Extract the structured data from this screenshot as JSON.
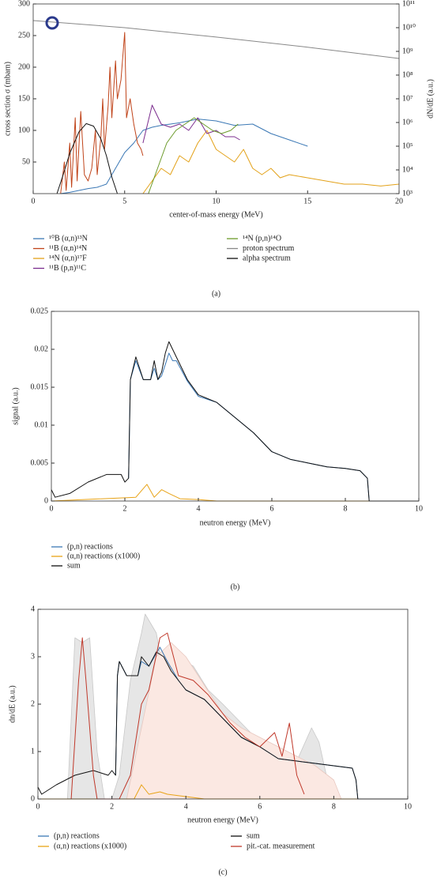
{
  "chart_data": [
    {
      "type": "line",
      "panel_label": "(a)",
      "x_label": "center-of-mass energy (MeV)",
      "y_label": "cross section σ (mbarn)",
      "y2_label": "dN/dE (a.u.)",
      "xlim": [
        0,
        20
      ],
      "xticks": [
        0,
        5,
        10,
        15,
        20
      ],
      "ylim": [
        0,
        300
      ],
      "yticks": [
        50,
        100,
        150,
        200,
        250,
        300
      ],
      "y2lim": [
        1000,
        100000000000
      ],
      "y2log": true,
      "y2ticks": [
        {
          "value": 1000,
          "label": "10³"
        },
        {
          "value": 10000,
          "label": "10⁴"
        },
        {
          "value": 100000,
          "label": "10⁵"
        },
        {
          "value": 1000000,
          "label": "10⁶"
        },
        {
          "value": 10000000,
          "label": "10⁷"
        },
        {
          "value": 100000000,
          "label": "10⁸"
        },
        {
          "value": 1000000000,
          "label": "10⁹"
        },
        {
          "value": 10000000000,
          "label": "10¹⁰"
        },
        {
          "value": 100000000000,
          "label": "10¹¹"
        }
      ],
      "series": [
        {
          "name": "¹⁰B (α,n)¹³N",
          "color": "#3b78b5",
          "x": [
            1.5,
            2,
            2.5,
            3,
            3.5,
            4,
            4.5,
            5,
            5.5,
            6,
            6.5,
            7,
            8,
            9,
            10,
            11,
            12,
            13,
            14,
            15
          ],
          "values": [
            0,
            2,
            5,
            8,
            10,
            15,
            40,
            65,
            80,
            100,
            105,
            108,
            112,
            118,
            115,
            108,
            110,
            95,
            85,
            75
          ]
        },
        {
          "name": "¹¹B (α,n)¹⁴N",
          "color": "#c0441a",
          "x": [
            1.5,
            1.7,
            1.8,
            2.0,
            2.1,
            2.3,
            2.4,
            2.6,
            2.8,
            3.0,
            3.2,
            3.4,
            3.5,
            3.7,
            3.8,
            3.9,
            4.1,
            4.2,
            4.3,
            4.5,
            4.6,
            4.8,
            5.0,
            5.1,
            5.3,
            5.5,
            5.7,
            5.9,
            6.0
          ],
          "values": [
            0,
            50,
            5,
            80,
            10,
            120,
            20,
            130,
            30,
            20,
            40,
            100,
            30,
            90,
            150,
            70,
            140,
            200,
            120,
            210,
            150,
            180,
            255,
            120,
            150,
            110,
            80,
            70,
            60
          ]
        },
        {
          "name": "¹⁴N (α,n)¹⁷F",
          "color": "#e3a21a",
          "x": [
            6,
            6.5,
            7,
            7.5,
            8,
            8.5,
            9,
            9.5,
            10,
            10.5,
            11,
            11.5,
            12,
            12.5,
            13,
            13.5,
            14,
            15,
            16,
            17,
            18,
            19,
            20
          ],
          "values": [
            0,
            20,
            40,
            30,
            60,
            50,
            80,
            100,
            70,
            60,
            50,
            70,
            40,
            30,
            40,
            25,
            30,
            25,
            20,
            15,
            15,
            12,
            15
          ]
        },
        {
          "name": "¹¹B (p,n)¹¹C",
          "color": "#7b2d8e",
          "x": [
            6,
            6.5,
            7,
            7.5,
            8,
            8.5,
            9,
            9.5,
            10,
            10.5,
            11,
            11.3
          ],
          "values": [
            80,
            140,
            110,
            105,
            110,
            100,
            120,
            95,
            100,
            90,
            90,
            85
          ]
        },
        {
          "name": "¹⁴N (p,n)¹⁴O",
          "color": "#6b9a2a",
          "x": [
            6.3,
            6.8,
            7.3,
            7.8,
            8.3,
            8.8,
            9.3,
            9.8,
            10.3,
            10.8,
            11.2
          ],
          "values": [
            0,
            40,
            80,
            100,
            110,
            120,
            110,
            100,
            95,
            100,
            110
          ]
        },
        {
          "name": "proton spectrum",
          "color": "#888888",
          "axis": "y2",
          "x": [
            0,
            5,
            10,
            15,
            20
          ],
          "values": [
            20000000000,
            10000000000,
            4000000000,
            1500000000,
            500000000
          ]
        },
        {
          "name": "alpha spectrum",
          "color": "#111111",
          "axis": "y2",
          "x": [
            1.3,
            1.6,
            2,
            2.5,
            2.9,
            3.3,
            3.7,
            4,
            4.3,
            4.6
          ],
          "values": [
            1000,
            5000,
            50000,
            400000,
            900000,
            700000,
            200000,
            40000,
            5000,
            1000
          ]
        }
      ]
    },
    {
      "type": "line",
      "panel_label": "(b)",
      "x_label": "neutron energy (MeV)",
      "y_label": "signal (a.u.)",
      "xlim": [
        0,
        10
      ],
      "xticks": [
        0,
        2,
        4,
        6,
        8,
        10
      ],
      "ylim": [
        0,
        0.025
      ],
      "yticks": [
        0,
        0.005,
        0.01,
        0.015,
        0.02,
        0.025
      ],
      "series": [
        {
          "name": "(p,n) reactions",
          "color": "#3b78b5",
          "x": [
            2.1,
            2.15,
            2.3,
            2.5,
            2.7,
            2.8,
            2.9,
            3.0,
            3.1,
            3.2,
            3.3,
            3.4,
            3.7,
            4,
            4.5,
            5,
            5.5,
            6,
            6.5,
            7,
            7.5,
            8,
            8.4,
            8.6,
            8.65
          ],
          "values": [
            0.003,
            0.016,
            0.0185,
            0.016,
            0.016,
            0.0175,
            0.016,
            0.0165,
            0.018,
            0.0195,
            0.0185,
            0.0185,
            0.0158,
            0.0138,
            0.013,
            0.011,
            0.009,
            0.0065,
            0.0055,
            0.005,
            0.0045,
            0.0043,
            0.004,
            0.003,
            0
          ]
        },
        {
          "name": "(α,n) reactions (x1000)",
          "color": "#e8a317",
          "x": [
            0,
            2.3,
            2.6,
            2.8,
            3.0,
            3.2,
            3.5,
            4,
            4.5,
            10
          ],
          "values": [
            0,
            0.0005,
            0.0022,
            0.0005,
            0.0015,
            0.001,
            0.0003,
            0.0002,
            0,
            0
          ]
        },
        {
          "name": "sum",
          "color": "#111111",
          "x": [
            0,
            0.1,
            0.5,
            1,
            1.5,
            1.9,
            2.0,
            2.1,
            2.15,
            2.3,
            2.5,
            2.7,
            2.8,
            2.9,
            3.0,
            3.1,
            3.2,
            3.4,
            3.7,
            4,
            4.5,
            5,
            5.5,
            6,
            6.5,
            7,
            7.5,
            8,
            8.4,
            8.6,
            8.65,
            10
          ],
          "values": [
            0.0015,
            0.0005,
            0.001,
            0.0025,
            0.0035,
            0.0035,
            0.0025,
            0.003,
            0.016,
            0.019,
            0.016,
            0.016,
            0.0185,
            0.016,
            0.017,
            0.0195,
            0.021,
            0.019,
            0.016,
            0.014,
            0.013,
            0.011,
            0.009,
            0.0065,
            0.0055,
            0.005,
            0.0045,
            0.0043,
            0.004,
            0.003,
            0,
            0
          ]
        }
      ]
    },
    {
      "type": "line",
      "panel_label": "(c)",
      "x_label": "neutron energy (MeV)",
      "y_label": "dn/dE (a.u.)",
      "xlim": [
        0,
        10
      ],
      "xticks": [
        0,
        2,
        4,
        6,
        8,
        10
      ],
      "ylim": [
        0,
        4
      ],
      "yticks": [
        0,
        1,
        2,
        3,
        4
      ],
      "series": [
        {
          "name": "(p,n) reactions",
          "color": "#3b78b5",
          "x": [
            2.1,
            2.15,
            2.2,
            2.4,
            2.7,
            2.8,
            3.0,
            3.3,
            3.5,
            3.8,
            4,
            4.5,
            5,
            5.5,
            6,
            6.5,
            7,
            7.5,
            8,
            8.5,
            8.6,
            8.65
          ],
          "values": [
            0.5,
            2.6,
            2.9,
            2.6,
            2.6,
            2.9,
            2.8,
            3.2,
            2.9,
            2.5,
            2.3,
            2.1,
            1.7,
            1.3,
            1.1,
            0.85,
            0.8,
            0.75,
            0.7,
            0.65,
            0.4,
            0
          ]
        },
        {
          "name": "(α,n) reactions (x1000)",
          "color": "#e8a317",
          "x": [
            0,
            2.6,
            2.8,
            3.0,
            3.3,
            3.5,
            4,
            4.5,
            10
          ],
          "values": [
            0,
            0,
            0.3,
            0.1,
            0.15,
            0.1,
            0.05,
            0,
            0
          ]
        },
        {
          "name": "sum",
          "color": "#111111",
          "x": [
            0,
            0.1,
            0.5,
            1,
            1.5,
            1.9,
            2.0,
            2.1,
            2.15,
            2.2,
            2.4,
            2.7,
            2.8,
            3.0,
            3.2,
            3.4,
            3.6,
            4,
            4.5,
            5,
            5.5,
            6,
            6.5,
            7,
            7.5,
            8,
            8.5,
            8.6,
            8.65,
            10
          ],
          "values": [
            0.25,
            0.1,
            0.3,
            0.5,
            0.6,
            0.5,
            0.6,
            0.5,
            2.6,
            2.9,
            2.6,
            2.6,
            3.0,
            2.8,
            3.1,
            3.0,
            2.7,
            2.3,
            2.1,
            1.7,
            1.3,
            1.1,
            0.85,
            0.8,
            0.75,
            0.7,
            0.65,
            0.4,
            0,
            0
          ]
        },
        {
          "name": "pit.-cat. measurement",
          "color": "#c0392b",
          "x": [
            0.9,
            1.1,
            1.2,
            1.3,
            1.5,
            1.6,
            2.2,
            2.5,
            2.8,
            3.0,
            3.3,
            3.5,
            3.8,
            4.2,
            4.6,
            5.2,
            5.6,
            6,
            6.4,
            6.6,
            6.8,
            7,
            7.2
          ],
          "values": [
            0,
            2.5,
            3.4,
            2.5,
            0.5,
            0,
            0,
            0.5,
            2.0,
            2.3,
            3.4,
            3.5,
            2.6,
            2.5,
            2.2,
            1.6,
            1.3,
            1.1,
            1.4,
            0.9,
            1.6,
            0.5,
            0.1
          ]
        },
        {
          "color": "#c8c8c8",
          "fill": "#e6e6e6",
          "x": [
            0.8,
            1.0,
            1.2,
            1.4,
            1.6,
            1.8,
            2.0,
            2.2,
            2.5,
            2.8,
            2.9,
            3.2,
            3.5,
            3.8,
            4.2,
            4.6,
            5,
            5.5,
            6,
            6.5,
            7,
            7.4,
            7.6,
            7.8,
            8
          ],
          "values": [
            0,
            3.4,
            3.3,
            3.4,
            1.0,
            0,
            0,
            0.5,
            2.5,
            3.5,
            3.9,
            3.5,
            2.2,
            3.0,
            2.8,
            2.3,
            2.0,
            1.6,
            1.2,
            1.0,
            0.8,
            1.5,
            1.2,
            0.5,
            0
          ]
        },
        {
          "color": "#e8c8c0",
          "fill": "#fbe8e2",
          "x": [
            2.4,
            2.8,
            3.2,
            3.6,
            4,
            4.5,
            5,
            5.5,
            6,
            6.5,
            7,
            7.5,
            8,
            8.2
          ],
          "values": [
            0,
            1.5,
            3.0,
            3.3,
            3.0,
            2.4,
            1.8,
            1.5,
            1.3,
            1.1,
            0.9,
            0.7,
            0.4,
            0
          ]
        }
      ]
    }
  ]
}
